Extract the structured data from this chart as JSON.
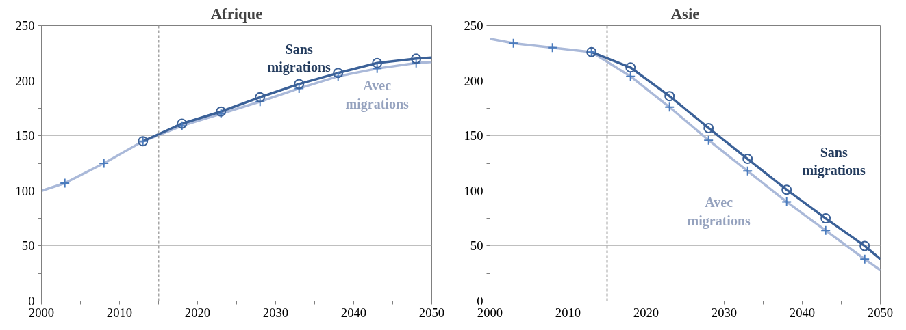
{
  "chart_data": [
    {
      "type": "line",
      "title": "Afrique",
      "xlim": [
        2000,
        2050
      ],
      "ylim": [
        0,
        250
      ],
      "xticks": [
        2000,
        {
          "value": 2005,
          "label": null
        },
        2010,
        {
          "value": 2015,
          "label": null
        },
        2020,
        {
          "value": 2025,
          "label": null
        },
        2030,
        {
          "value": 2035,
          "label": null
        },
        2040,
        {
          "value": 2045,
          "label": null
        },
        2050
      ],
      "yticks": [
        0,
        {
          "value": 25,
          "label": null
        },
        50,
        {
          "value": 75,
          "label": null
        },
        100,
        {
          "value": 125,
          "label": null
        },
        150,
        {
          "value": 175,
          "label": null
        },
        200,
        {
          "value": 225,
          "label": null
        },
        250
      ],
      "grid": "y",
      "legend": false,
      "ref_lines": [
        {
          "axis": "x",
          "value": 2015,
          "color": "#a6a6a6",
          "line_style": "dashed"
        }
      ],
      "series": [
        {
          "name": "Avec\nmigrations",
          "color": "#aab9d9",
          "x": [
            2000,
            2003,
            2008,
            2013,
            2018,
            2023,
            2028,
            2033,
            2038,
            2043,
            2048,
            2050
          ],
          "values": [
            100,
            107,
            125,
            145,
            159,
            170,
            181,
            193,
            204,
            211,
            216,
            217
          ]
        },
        {
          "name": "Sans\nmigrations",
          "color": "#3b6198",
          "x": [
            2013,
            2018,
            2023,
            2028,
            2033,
            2038,
            2043,
            2048,
            2050
          ],
          "values": [
            145,
            161,
            172,
            185,
            197,
            207,
            216,
            220,
            221
          ]
        },
        {
          "type": "scatter",
          "marker": "cross",
          "color": "#4a7bbd",
          "x": [
            2003,
            2008,
            2013,
            2018,
            2023,
            2028,
            2033,
            2038,
            2043,
            2048
          ],
          "values": [
            107,
            125,
            145,
            159,
            170,
            181,
            193,
            204,
            211,
            216
          ]
        },
        {
          "type": "scatter",
          "marker": "circle",
          "color": "#3b6198",
          "x": [
            2013,
            2018,
            2023,
            2028,
            2033,
            2038,
            2043,
            2048
          ],
          "values": [
            145,
            161,
            172,
            185,
            197,
            207,
            216,
            220
          ]
        }
      ]
    },
    {
      "type": "line",
      "title": "Asie",
      "xlim": [
        2000,
        2050
      ],
      "ylim": [
        0,
        250
      ],
      "xticks": [
        2000,
        {
          "value": 2005,
          "label": null
        },
        2010,
        {
          "value": 2015,
          "label": null
        },
        2020,
        {
          "value": 2025,
          "label": null
        },
        2030,
        {
          "value": 2035,
          "label": null
        },
        2040,
        {
          "value": 2045,
          "label": null
        },
        2050
      ],
      "yticks": [
        0,
        {
          "value": 25,
          "label": null
        },
        50,
        {
          "value": 75,
          "label": null
        },
        100,
        {
          "value": 125,
          "label": null
        },
        150,
        {
          "value": 175,
          "label": null
        },
        200,
        {
          "value": 225,
          "label": null
        },
        250
      ],
      "grid": "y",
      "legend": false,
      "ref_lines": [
        {
          "axis": "x",
          "value": 2015,
          "color": "#a6a6a6",
          "line_style": "dashed"
        }
      ],
      "series": [
        {
          "name": "Avec\nmigrations",
          "color": "#aab9d9",
          "x": [
            2000,
            2003,
            2008,
            2013,
            2018,
            2023,
            2028,
            2033,
            2038,
            2043,
            2048,
            2050
          ],
          "values": [
            238,
            234,
            230,
            226,
            204,
            176,
            146,
            118,
            90,
            64,
            38,
            28
          ]
        },
        {
          "name": "Sans\nmigrations",
          "color": "#3b6198",
          "x": [
            2013,
            2018,
            2023,
            2028,
            2033,
            2038,
            2043,
            2048,
            2050
          ],
          "values": [
            226,
            212,
            186,
            157,
            129,
            101,
            75,
            50,
            38
          ]
        },
        {
          "type": "scatter",
          "marker": "cross",
          "color": "#4a7bbd",
          "x": [
            2003,
            2008,
            2013,
            2018,
            2023,
            2028,
            2033,
            2038,
            2043,
            2048
          ],
          "values": [
            234,
            230,
            226,
            204,
            176,
            146,
            118,
            90,
            64,
            38
          ]
        },
        {
          "type": "scatter",
          "marker": "circle",
          "color": "#3b6198",
          "x": [
            2013,
            2018,
            2023,
            2028,
            2033,
            2038,
            2043,
            2048
          ],
          "values": [
            226,
            212,
            186,
            157,
            129,
            101,
            75,
            50
          ]
        }
      ]
    }
  ]
}
